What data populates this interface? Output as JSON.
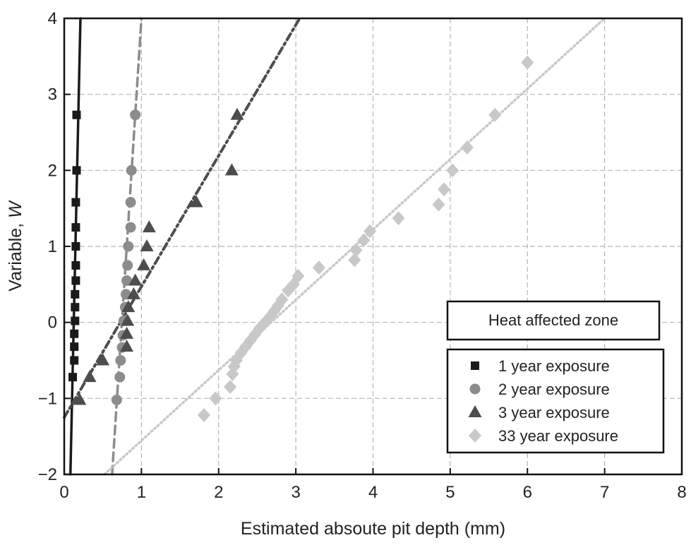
{
  "chart_data": {
    "type": "scatter",
    "title": "",
    "xlabel": "Estimated absoute pit depth (mm)",
    "ylabel_prefix": "Variable, ",
    "ylabel_var": "W",
    "xlim": [
      0,
      8
    ],
    "ylim": [
      -2,
      4
    ],
    "xticks": [
      "0",
      "1",
      "2",
      "3",
      "4",
      "5",
      "6",
      "7",
      "8"
    ],
    "yticks": [
      "−2",
      "−1",
      "0",
      "1",
      "2",
      "3",
      "4"
    ],
    "grid": true,
    "legend_title": "Heat affected zone",
    "legend_position": "bottom-right",
    "series": [
      {
        "name": "1 year exposure",
        "marker": "square",
        "color": "#1a1a1a",
        "points": [
          [
            0.16,
            2.73
          ],
          [
            0.16,
            2.0
          ],
          [
            0.15,
            1.58
          ],
          [
            0.15,
            1.25
          ],
          [
            0.15,
            1.0
          ],
          [
            0.15,
            0.75
          ],
          [
            0.15,
            0.55
          ],
          [
            0.14,
            0.37
          ],
          [
            0.14,
            0.2
          ],
          [
            0.14,
            0.02
          ],
          [
            0.13,
            -0.15
          ],
          [
            0.13,
            -0.32
          ],
          [
            0.13,
            -0.5
          ],
          [
            0.11,
            -0.72
          ]
        ],
        "fit_line": {
          "style": "solid",
          "from": [
            0.08,
            -2
          ],
          "to": [
            0.21,
            4
          ]
        }
      },
      {
        "name": "2 year exposure",
        "marker": "circle",
        "color": "#8c8c8c",
        "points": [
          [
            0.92,
            2.73
          ],
          [
            0.87,
            2.0
          ],
          [
            0.86,
            1.58
          ],
          [
            0.86,
            1.25
          ],
          [
            0.83,
            1.0
          ],
          [
            0.82,
            0.75
          ],
          [
            0.81,
            0.55
          ],
          [
            0.8,
            0.37
          ],
          [
            0.79,
            0.2
          ],
          [
            0.77,
            0.02
          ],
          [
            0.76,
            -0.17
          ],
          [
            0.75,
            -0.33
          ],
          [
            0.73,
            -0.5
          ],
          [
            0.72,
            -0.72
          ],
          [
            0.68,
            -1.02
          ]
        ],
        "fit_line": {
          "style": "dashed",
          "from": [
            0.62,
            -2
          ],
          "to": [
            1.0,
            4
          ]
        }
      },
      {
        "name": "3 year exposure",
        "marker": "triangle",
        "color": "#4d4d4d",
        "points": [
          [
            2.24,
            2.73
          ],
          [
            2.17,
            2.0
          ],
          [
            1.71,
            1.58
          ],
          [
            1.1,
            1.25
          ],
          [
            1.07,
            1.0
          ],
          [
            1.03,
            0.75
          ],
          [
            0.92,
            0.55
          ],
          [
            0.9,
            0.37
          ],
          [
            0.83,
            0.2
          ],
          [
            0.82,
            0.02
          ],
          [
            0.81,
            -0.15
          ],
          [
            0.81,
            -0.32
          ],
          [
            0.5,
            -0.5
          ],
          [
            0.33,
            -0.72
          ],
          [
            0.2,
            -1.02
          ]
        ],
        "fit_line": {
          "style": "dash-dot",
          "from": [
            0.0,
            -1.25
          ],
          "to": [
            3.05,
            4
          ]
        }
      },
      {
        "name": "33 year exposure",
        "marker": "diamond",
        "color": "#c8c8c8",
        "points": [
          [
            6.0,
            3.42
          ],
          [
            5.58,
            2.73
          ],
          [
            5.22,
            2.3
          ],
          [
            5.03,
            2.0
          ],
          [
            4.92,
            1.75
          ],
          [
            4.85,
            1.55
          ],
          [
            4.33,
            1.37
          ],
          [
            3.96,
            1.2
          ],
          [
            3.88,
            1.08
          ],
          [
            3.78,
            0.95
          ],
          [
            3.76,
            0.82
          ],
          [
            3.3,
            0.72
          ],
          [
            3.03,
            0.61
          ],
          [
            2.97,
            0.5
          ],
          [
            2.9,
            0.42
          ],
          [
            2.82,
            0.3
          ],
          [
            2.77,
            0.22
          ],
          [
            2.72,
            0.15
          ],
          [
            2.67,
            0.08
          ],
          [
            2.6,
            0.0
          ],
          [
            2.53,
            -0.08
          ],
          [
            2.47,
            -0.16
          ],
          [
            2.41,
            -0.24
          ],
          [
            2.35,
            -0.32
          ],
          [
            2.29,
            -0.4
          ],
          [
            2.23,
            -0.5
          ],
          [
            2.2,
            -0.58
          ],
          [
            2.18,
            -0.68
          ],
          [
            2.15,
            -0.85
          ],
          [
            1.96,
            -1.0
          ],
          [
            1.81,
            -1.22
          ]
        ],
        "fit_line": {
          "style": "dotted",
          "from": [
            0.52,
            -2
          ],
          "to": [
            7.0,
            4
          ]
        }
      }
    ]
  }
}
